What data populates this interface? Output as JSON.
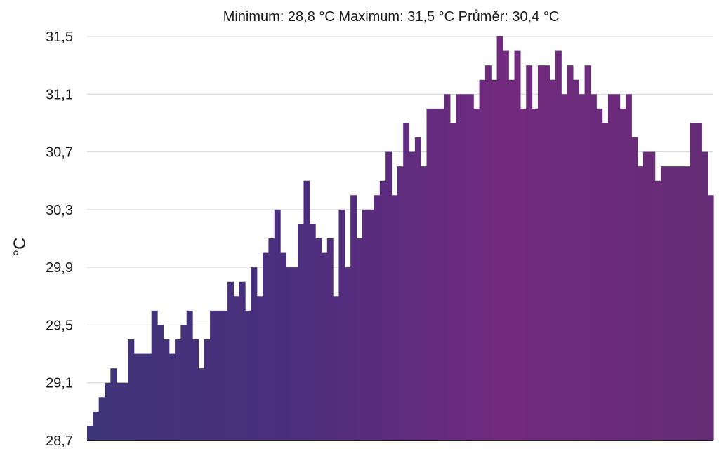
{
  "chart_data": {
    "type": "bar",
    "title": "",
    "summary": {
      "text": "Minimum: 28,8 °C Maximum: 31,5 °C Průměr: 30,4 °C",
      "min_label": "Minimum:",
      "min_value": "28,8 °C",
      "max_label": "Maximum:",
      "max_value": "31,5 °C",
      "avg_label": "Průměr:",
      "avg_value": "30,4 °C"
    },
    "xlabel": "",
    "ylabel": "°C",
    "ylim": [
      28.7,
      31.5
    ],
    "yticks": [
      28.7,
      29.1,
      29.5,
      29.9,
      30.3,
      30.7,
      31.1,
      31.5
    ],
    "ytick_labels": [
      "28,7",
      "29,1",
      "29,5",
      "29,9",
      "30,3",
      "30,7",
      "31,1",
      "31,5"
    ],
    "grid": true,
    "legend": "none",
    "gradient_colors": [
      "#3e3478",
      "#4b2e7e",
      "#722a7e",
      "#642c76"
    ],
    "values": [
      28.8,
      28.9,
      29.0,
      29.1,
      29.2,
      29.1,
      29.1,
      29.4,
      29.3,
      29.3,
      29.3,
      29.6,
      29.5,
      29.4,
      29.3,
      29.4,
      29.5,
      29.6,
      29.4,
      29.2,
      29.4,
      29.6,
      29.6,
      29.6,
      29.8,
      29.7,
      29.8,
      29.6,
      29.9,
      29.7,
      30.0,
      30.1,
      30.3,
      30.0,
      29.9,
      29.9,
      30.2,
      30.5,
      30.2,
      30.1,
      30.0,
      30.1,
      29.7,
      30.3,
      29.9,
      30.4,
      30.1,
      30.3,
      30.3,
      30.4,
      30.5,
      30.7,
      30.4,
      30.6,
      30.9,
      30.7,
      30.8,
      30.6,
      31.0,
      31.0,
      31.0,
      31.1,
      30.9,
      31.1,
      31.1,
      31.1,
      31.0,
      31.2,
      31.3,
      31.2,
      31.5,
      31.4,
      31.2,
      31.4,
      31.0,
      31.3,
      31.0,
      31.3,
      31.3,
      31.2,
      31.4,
      31.1,
      31.3,
      31.2,
      31.1,
      31.3,
      31.1,
      31.0,
      30.9,
      31.1,
      31.1,
      31.0,
      31.1,
      30.8,
      30.6,
      30.7,
      30.7,
      30.5,
      30.6,
      30.6,
      30.6,
      30.6,
      30.6,
      30.9,
      30.9,
      30.7,
      30.4
    ]
  }
}
